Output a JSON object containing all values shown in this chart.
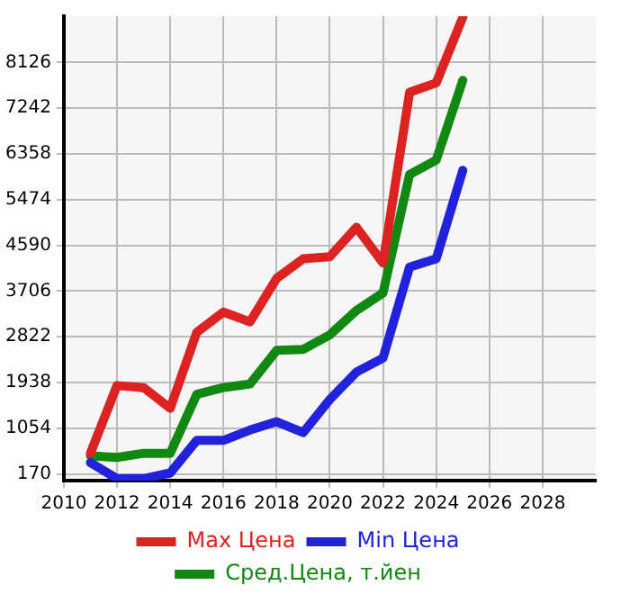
{
  "chart_data": {
    "type": "line",
    "x": [
      2011,
      2012,
      2013,
      2014,
      2015,
      2016,
      2017,
      2018,
      2019,
      2020,
      2021,
      2022,
      2023,
      2024,
      2025
    ],
    "series": [
      {
        "name": "Max Цена",
        "color": "#dd2222",
        "values": [
          570,
          1880,
          1840,
          1440,
          2910,
          3300,
          3110,
          3950,
          4330,
          4370,
          4940,
          4250,
          7550,
          7730,
          9000
        ]
      },
      {
        "name": "Min Цена",
        "color": "#2222dd",
        "values": [
          390,
          80,
          80,
          190,
          820,
          820,
          1020,
          1180,
          970,
          1610,
          2140,
          2410,
          4170,
          4330,
          6040
        ]
      },
      {
        "name": "Сред.Цена, т.йен",
        "color": "#118811",
        "values": [
          520,
          490,
          570,
          570,
          1710,
          1840,
          1910,
          2560,
          2580,
          2860,
          3330,
          3670,
          5960,
          6240,
          7780
        ]
      }
    ],
    "xlim": [
      2010,
      2030
    ],
    "xticks": [
      2010,
      2012,
      2014,
      2016,
      2018,
      2020,
      2022,
      2024,
      2026,
      2028
    ],
    "ylim": [
      42,
      9020
    ],
    "yticks": [
      170,
      1054,
      1938,
      2822,
      3706,
      4590,
      5474,
      6358,
      7242,
      8126
    ],
    "grid": true,
    "legend": "bottom",
    "marker": "none",
    "line_style": "solid"
  }
}
